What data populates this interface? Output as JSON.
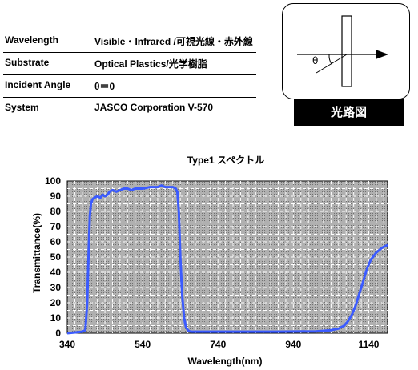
{
  "specs": [
    {
      "label": "Wavelength",
      "value": "Visible・Infrared /可視光線・赤外線"
    },
    {
      "label": "Substrate",
      "value": "Optical Plastics/光学樹脂"
    },
    {
      "label": "Incident Angle",
      "value": "θ＝0"
    },
    {
      "label": "System",
      "value": "JASCO Corporation  V-570"
    }
  ],
  "diagram": {
    "theta_label": "θ",
    "caption": "光路図"
  },
  "chart_data": {
    "type": "line",
    "title": "Type1  スペクトル",
    "xlabel": "Wavelength(nm)",
    "ylabel": "Transmittance(%)",
    "xlim": [
      340,
      1190
    ],
    "ylim": [
      0,
      100
    ],
    "xticks": [
      340,
      540,
      740,
      940,
      1140
    ],
    "yticks": [
      0,
      10,
      20,
      30,
      40,
      50,
      60,
      70,
      80,
      90,
      100
    ],
    "grid": true,
    "line_color": "#3b5bff",
    "plot_background": "#c0c0c0",
    "series": [
      {
        "x": [
          340,
          380,
          388,
          393,
          397,
          400,
          403,
          407,
          412,
          420,
          428,
          434,
          440,
          447,
          452,
          460,
          470,
          480,
          490,
          500,
          510,
          520,
          530,
          540,
          560,
          580,
          590,
          600,
          610,
          620,
          628,
          632,
          636,
          640,
          645,
          650,
          655,
          660,
          665,
          670,
          690,
          720,
          800,
          900,
          1000,
          1040,
          1060,
          1075,
          1085,
          1095,
          1105,
          1115,
          1125,
          1135,
          1145,
          1160,
          1175,
          1190
        ],
        "y": [
          0,
          1,
          2,
          20,
          55,
          77,
          85,
          88,
          89,
          90,
          89,
          91,
          90,
          91,
          93,
          94,
          93,
          94,
          95,
          95,
          94,
          95,
          95,
          95,
          96,
          96,
          97,
          96,
          96,
          96,
          95,
          93,
          80,
          50,
          25,
          10,
          4,
          2,
          1.2,
          1,
          1,
          1,
          1,
          1,
          1.2,
          2,
          3,
          5,
          8,
          12,
          18,
          26,
          34,
          42,
          48,
          53,
          56,
          58
        ]
      }
    ]
  }
}
